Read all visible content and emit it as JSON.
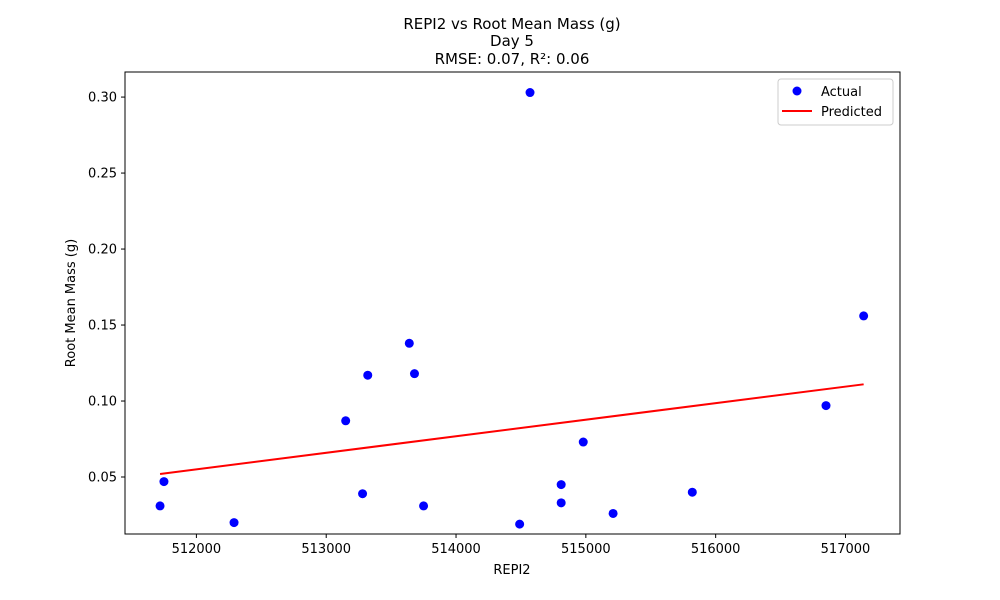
{
  "chart_data": {
    "type": "scatter",
    "title": "REPI2 vs Root Mean Mass (g)",
    "subtitle": "Day 5",
    "metrics": "RMSE: 0.07, R²: 0.06",
    "xlabel": "REPI2",
    "ylabel": "Root Mean Mass (g)",
    "xlim": [
      511450,
      517420
    ],
    "ylim": [
      0.0125,
      0.3165
    ],
    "xticks": [
      512000,
      513000,
      514000,
      515000,
      516000,
      517000
    ],
    "yticks": [
      0.05,
      0.1,
      0.15,
      0.2,
      0.25,
      0.3
    ],
    "xtick_labels": [
      "512000",
      "513000",
      "514000",
      "515000",
      "516000",
      "517000"
    ],
    "ytick_labels": [
      "0.05",
      "0.10",
      "0.15",
      "0.20",
      "0.25",
      "0.30"
    ],
    "grid": false,
    "legend_position": "top-right",
    "series": [
      {
        "name": "Actual",
        "kind": "scatter",
        "color": "#0000ff",
        "points": [
          [
            511720,
            0.031
          ],
          [
            511750,
            0.047
          ],
          [
            512290,
            0.02
          ],
          [
            513150,
            0.087
          ],
          [
            513280,
            0.039
          ],
          [
            513320,
            0.117
          ],
          [
            513640,
            0.138
          ],
          [
            513680,
            0.118
          ],
          [
            513750,
            0.031
          ],
          [
            514490,
            0.019
          ],
          [
            514570,
            0.303
          ],
          [
            514810,
            0.045
          ],
          [
            514810,
            0.033
          ],
          [
            514980,
            0.073
          ],
          [
            515210,
            0.026
          ],
          [
            515820,
            0.04
          ],
          [
            516850,
            0.097
          ],
          [
            517140,
            0.156
          ]
        ]
      },
      {
        "name": "Predicted",
        "kind": "line",
        "color": "#ff0000",
        "points": [
          [
            511720,
            0.052
          ],
          [
            517140,
            0.111
          ]
        ]
      }
    ]
  }
}
